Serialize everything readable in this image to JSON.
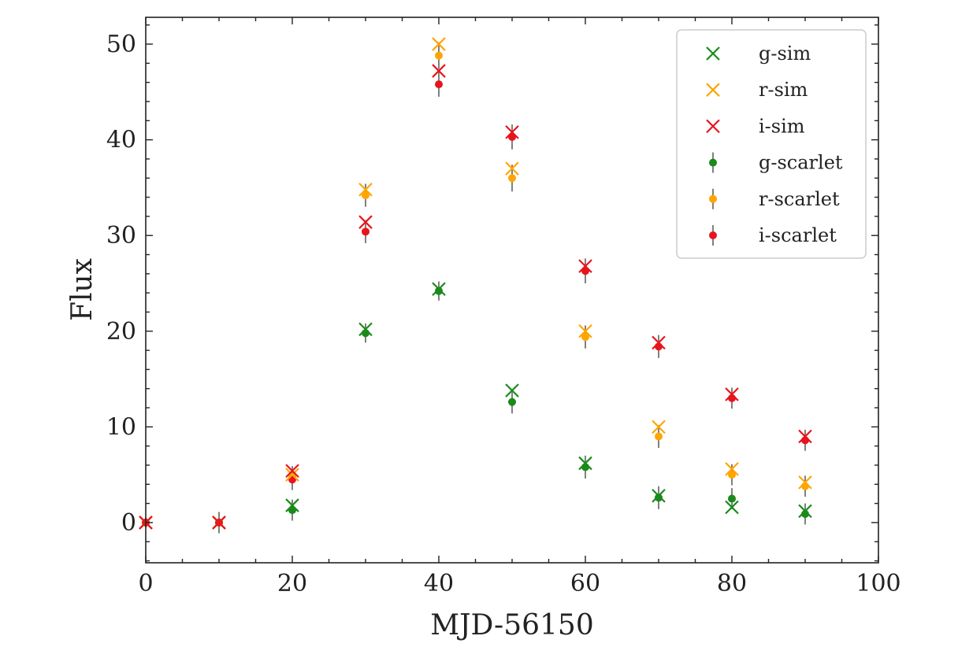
{
  "chart_data": {
    "type": "scatter",
    "title": "",
    "xlabel": "MJD-56150",
    "ylabel": "Flux",
    "xlim": [
      0,
      100
    ],
    "ylim": [
      -4.2,
      52.8
    ],
    "xticks": [
      0,
      20,
      40,
      60,
      80,
      100
    ],
    "yticks": [
      0,
      10,
      20,
      30,
      40,
      50
    ],
    "xtick_labels": [
      "0",
      "20",
      "40",
      "60",
      "80",
      "100"
    ],
    "ytick_labels": [
      "0",
      "10",
      "20",
      "30",
      "40",
      "50"
    ],
    "x_minor_step": 5,
    "y_minor_step": 2,
    "grid": false,
    "legend_position": "top-right",
    "x": [
      0,
      10,
      20,
      30,
      40,
      50,
      60,
      70,
      80,
      90
    ],
    "series": [
      {
        "name": "g-sim",
        "marker": "x",
        "color": "#1a8a1a",
        "values": [
          0,
          0,
          1.8,
          20.2,
          24.4,
          13.8,
          6.2,
          2.8,
          1.6,
          1.2
        ]
      },
      {
        "name": "r-sim",
        "marker": "x",
        "color": "#ffa500",
        "values": [
          0,
          0,
          5.0,
          34.8,
          50.0,
          37.0,
          20.0,
          10.0,
          5.6,
          4.2
        ]
      },
      {
        "name": "i-sim",
        "marker": "x",
        "color": "#e8141c",
        "values": [
          0,
          0,
          5.4,
          31.4,
          47.2,
          40.8,
          26.8,
          18.8,
          13.4,
          9.0
        ]
      },
      {
        "name": "g-scarlet",
        "marker": "dot",
        "color": "#1a8a1a",
        "values": [
          0,
          0,
          1.3,
          19.8,
          24.2,
          12.6,
          5.8,
          2.6,
          2.5,
          0.9
        ],
        "errors": [
          0.5,
          1.1,
          1.1,
          1.0,
          1.0,
          1.2,
          1.2,
          1.2,
          1.1,
          1.1
        ]
      },
      {
        "name": "r-scarlet",
        "marker": "dot",
        "color": "#ffa500",
        "values": [
          0,
          0,
          4.8,
          34.2,
          48.8,
          36.0,
          19.4,
          9.0,
          5.0,
          3.8
        ],
        "errors": [
          0.5,
          1.1,
          1.1,
          1.2,
          1.4,
          1.4,
          1.2,
          1.2,
          1.1,
          1.1
        ]
      },
      {
        "name": "i-scarlet",
        "marker": "dot",
        "color": "#e8141c",
        "values": [
          0,
          0,
          4.5,
          30.4,
          45.8,
          40.3,
          26.3,
          18.4,
          13.0,
          8.6
        ],
        "errors": [
          0.5,
          1.1,
          1.1,
          1.2,
          1.3,
          1.3,
          1.3,
          1.2,
          1.1,
          1.1
        ]
      }
    ]
  }
}
